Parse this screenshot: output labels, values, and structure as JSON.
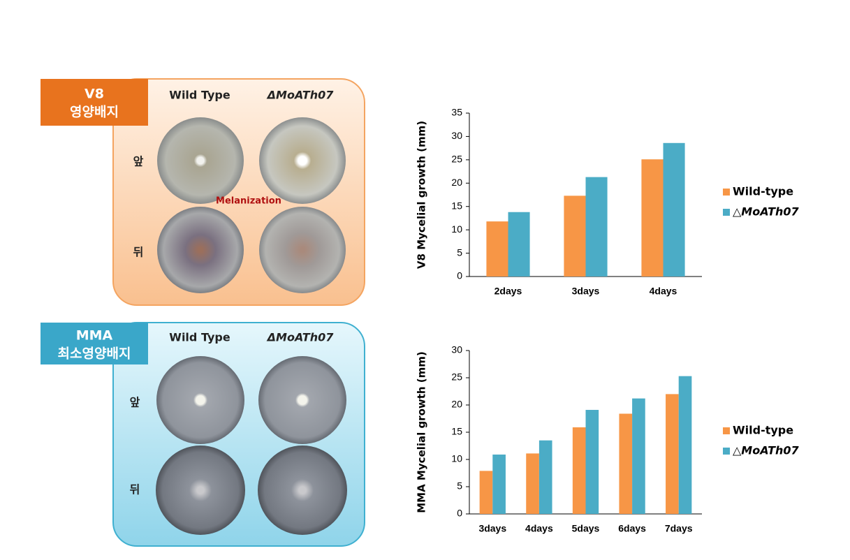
{
  "panels": [
    {
      "medium": "V8",
      "medium_sub": "영양배지",
      "col_labels": [
        "Wild Type",
        "ΔMoATh07"
      ],
      "row_labels": [
        "앞",
        "뒤"
      ],
      "annotation": "Melanization"
    },
    {
      "medium": "MMA",
      "medium_sub": "최소영양배지",
      "col_labels": [
        "Wild Type",
        "ΔMoATh07"
      ],
      "row_labels": [
        "앞",
        "뒤"
      ]
    }
  ],
  "chart_data": [
    {
      "type": "bar",
      "y_label": "V8 Mycelial growth (mm)",
      "categories": [
        "2days",
        "3days",
        "4days"
      ],
      "series": [
        {
          "name": "Wild-type",
          "color": "#f79646",
          "values": [
            11.8,
            17.3,
            25.1
          ]
        },
        {
          "name": "△MoATh07",
          "color": "#4bacc6",
          "values": [
            13.8,
            21.3,
            28.6
          ]
        }
      ],
      "ylim": [
        0,
        35
      ],
      "yticks": [
        0,
        5,
        10,
        15,
        20,
        25,
        30,
        35
      ],
      "grid": false,
      "legend": "right"
    },
    {
      "type": "bar",
      "y_label": "MMA Mycelial growth (mm)",
      "categories": [
        "3days",
        "4days",
        "5days",
        "6days",
        "7days"
      ],
      "series": [
        {
          "name": "Wild-type",
          "color": "#f79646",
          "values": [
            7.9,
            11.1,
            15.9,
            18.4,
            22.0
          ]
        },
        {
          "name": "△MoATh07",
          "color": "#4bacc6",
          "values": [
            10.9,
            13.5,
            19.1,
            21.2,
            25.3
          ]
        }
      ],
      "ylim": [
        0,
        30
      ],
      "yticks": [
        0,
        5,
        10,
        15,
        20,
        25,
        30
      ],
      "grid": false,
      "legend": "right"
    }
  ]
}
